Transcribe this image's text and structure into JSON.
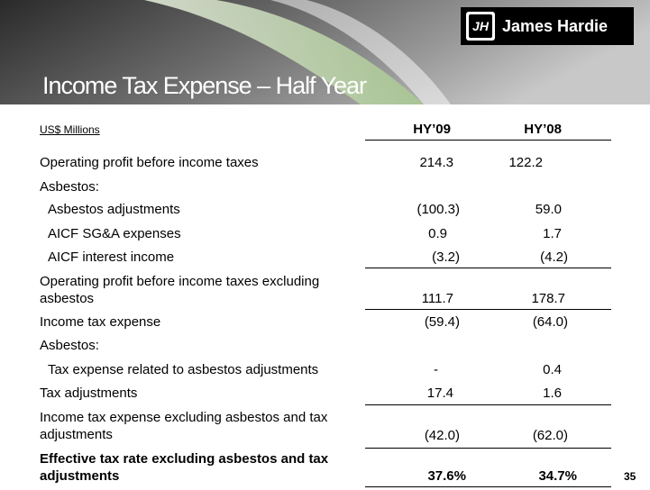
{
  "header": {
    "title": "Income Tax Expense – Half Year",
    "logo": "James Hardie",
    "logo_mark": "JH"
  },
  "table": {
    "unit": "US$ Millions",
    "columns": [
      "HY’09",
      "HY’08"
    ],
    "rows": [
      [
        "Operating profit before income taxes",
        "214.3",
        "122.2"
      ],
      [
        "Asbestos:"
      ],
      [
        "Asbestos adjustments",
        "(100.3)",
        "59.0"
      ],
      [
        "AICF SG&A expenses",
        "0.9",
        "1.7"
      ],
      [
        "AICF interest income",
        "(3.2)",
        "(4.2)"
      ],
      [
        "Operating profit before income taxes excluding asbestos",
        "111.7",
        "178.7"
      ],
      [
        "Income tax expense",
        "(59.4)",
        "(64.0)"
      ],
      [
        "Asbestos:"
      ],
      [
        "Tax expense related to asbestos adjustments",
        "-",
        "0.4"
      ],
      [
        "Tax adjustments",
        "17.4",
        "1.6"
      ],
      [
        "Income tax expense excluding asbestos and tax adjustments",
        "(42.0)",
        "(62.0)"
      ],
      [
        "Effective tax rate excluding asbestos and tax adjustments",
        "37.6%",
        "34.7%"
      ]
    ]
  },
  "page_number": "35"
}
